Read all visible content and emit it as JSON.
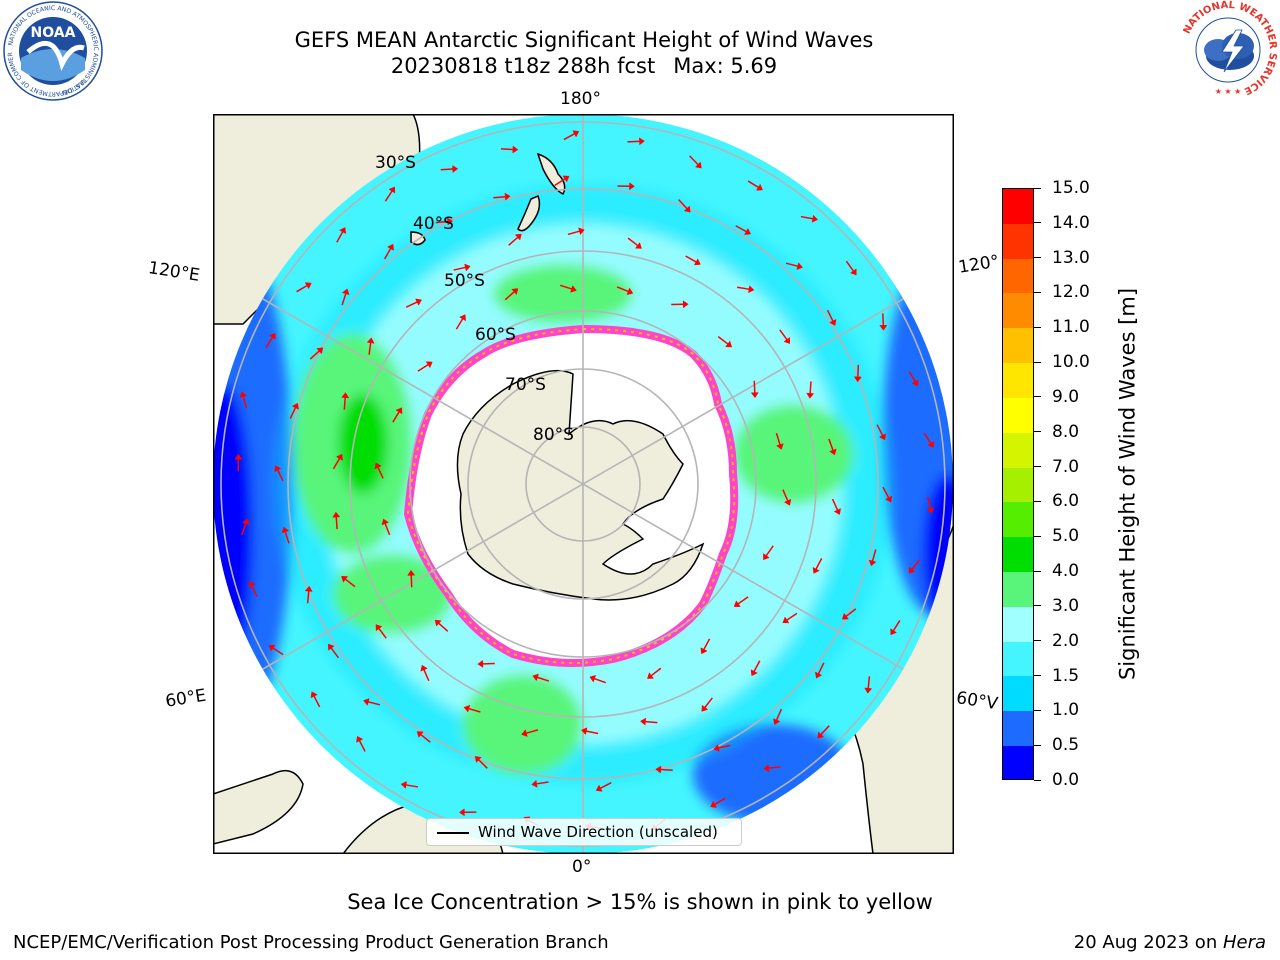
{
  "header": {
    "title_line1": "GEFS MEAN Antarctic Significant Height of Wind Waves",
    "title_date": "20230818 t18z 288h fcst",
    "title_max": "Max: 5.69"
  },
  "logos": {
    "left": {
      "name": "NOAA",
      "ring_text": "NATIONAL OCEANIC AND ATMOSPHERIC ADMINISTRATION",
      "bottom_text": "U.S. DEPARTMENT OF COMMERCE",
      "color": "#1f4e9e"
    },
    "right": {
      "name": "NATIONAL WEATHER SERVICE",
      "color": "#e8332a"
    }
  },
  "map": {
    "projection": "south-polar-stereographic",
    "lon_labels": {
      "top": "180°",
      "bottom": "0°",
      "left_upper": "120°E",
      "left_lower": "60°E",
      "right_upper": "120°",
      "right_lower": "60°V"
    },
    "lat_labels": [
      "30°S",
      "40°S",
      "50°S",
      "60°S",
      "70°S",
      "80°S"
    ],
    "colors": {
      "land": "#efeddc",
      "gridlines": "#b5b5b5",
      "arrows": "#ff0000",
      "ice_edge": "#ff44cc",
      "ice_inner": "#ffffff"
    },
    "legend_label": "Wind Wave Direction (unscaled)"
  },
  "colorbar": {
    "label": "Significant Height of Wind Waves [m]",
    "ticks": [
      "0.0",
      "0.5",
      "1.0",
      "1.5",
      "2.0",
      "3.0",
      "4.0",
      "5.0",
      "6.0",
      "7.0",
      "8.0",
      "9.0",
      "10.0",
      "11.0",
      "12.0",
      "13.0",
      "14.0",
      "15.0"
    ],
    "colors": [
      "#0000ff",
      "#1e6cff",
      "#00dcff",
      "#44f5ff",
      "#a0ffff",
      "#58f57a",
      "#00dd00",
      "#55ee00",
      "#a4f000",
      "#d4f500",
      "#ffff00",
      "#ffe600",
      "#ffc000",
      "#ff8c00",
      "#ff6600",
      "#ff3300",
      "#ff0000"
    ]
  },
  "footer": {
    "caption": "Sea Ice Concentration > 15% is shown in pink to yellow",
    "left": "NCEP/EMC/Verification Post Processing Product Generation Branch",
    "right_prefix": "20 Aug 2023 on ",
    "right_host": "Hera"
  }
}
